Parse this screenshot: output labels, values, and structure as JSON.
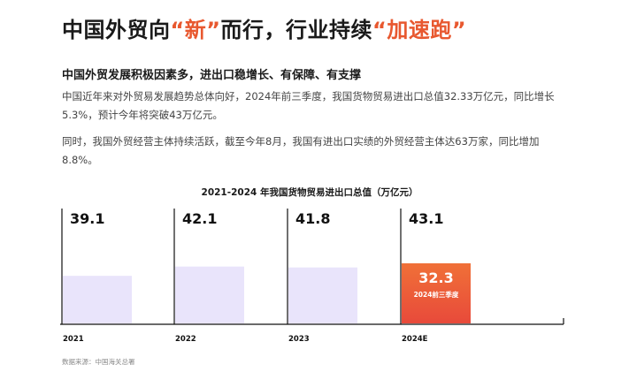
{
  "title": {
    "prefix": "中国外贸向",
    "highlight1": "“新”",
    "middle": "而行，行业持续",
    "highlight2": "“加速跑”"
  },
  "subtitle": "中国外贸发展积极因素多，进出口稳增长、有保障、有支撑",
  "paragraphs": [
    "中国近年来对外贸易发展趋势总体向好，2024年前三季度，我国货物贸易进出口总值32.33万亿元，同比增长5.3%，预计今年将突破43万亿元。",
    "同时，我国外贸经营主体持续活跃，截至今年8月，我国有进出口实绩的外贸经营主体达63万家，同比增加8.8%。"
  ],
  "source": "数据来源：中国海关总署",
  "colors": {
    "accent": "#e8582f",
    "bar": "#e9e4fb",
    "bar_highlight_top": "#f07038",
    "bar_highlight_bottom": "#e84a3a"
  },
  "chart_data": {
    "type": "bar",
    "title": "2021-2024 年我国货物贸易进出口总值（万亿元）",
    "categories": [
      "2021",
      "2022",
      "2023",
      "2024E"
    ],
    "values": [
      39.1,
      42.1,
      41.8,
      43.1
    ],
    "value_labels": [
      "39.1",
      "42.1",
      "41.8",
      "43.1"
    ],
    "highlight": {
      "category": "2024E",
      "value": 32.3,
      "value_label": "32.3",
      "label": "2024前三季度"
    },
    "ylim": [
      0,
      45
    ]
  }
}
